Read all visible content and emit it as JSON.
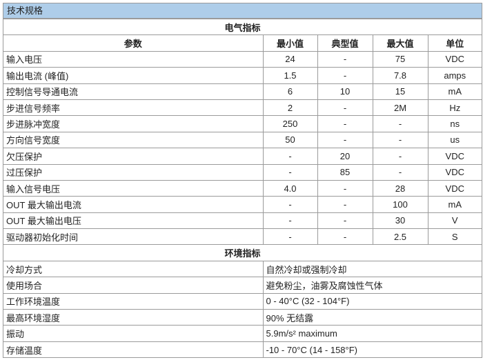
{
  "title": "技术规格",
  "electrical": {
    "section": "电气指标",
    "headers": [
      "参数",
      "最小值",
      "典型值",
      "最大值",
      "单位"
    ],
    "rows": [
      [
        "输入电压",
        "24",
        "-",
        "75",
        "VDC"
      ],
      [
        "输出电流 (峰值)",
        "1.5",
        "-",
        "7.8",
        "amps"
      ],
      [
        "控制信号导通电流",
        "6",
        "10",
        "15",
        "mA"
      ],
      [
        "步进信号频率",
        "2",
        "-",
        "2M",
        "Hz"
      ],
      [
        "步进脉冲宽度",
        "250",
        "-",
        "-",
        "ns"
      ],
      [
        "方向信号宽度",
        "50",
        "-",
        "-",
        "us"
      ],
      [
        "欠压保护",
        "-",
        "20",
        "-",
        "VDC"
      ],
      [
        "过压保护",
        "-",
        "85",
        "-",
        "VDC"
      ],
      [
        "输入信号电压",
        "4.0",
        "-",
        "28",
        "VDC"
      ],
      [
        "OUT 最大输出电流",
        "-",
        "-",
        "100",
        "mA"
      ],
      [
        "OUT 最大输出电压",
        "-",
        "-",
        "30",
        "V"
      ],
      [
        "驱动器初始化时间",
        "-",
        "-",
        "2.5",
        "S"
      ]
    ]
  },
  "environment": {
    "section": "环境指标",
    "rows": [
      [
        "冷却方式",
        "自然冷却或强制冷却"
      ],
      [
        "使用场合",
        "避免粉尘，油雾及腐蚀性气体"
      ],
      [
        "工作环境温度",
        "0 - 40°C (32 - 104°F)"
      ],
      [
        "最高环境湿度",
        "90% 无结露"
      ],
      [
        "振动",
        "5.9m/s² maximum"
      ],
      [
        "存储温度",
        "-10 - 70°C (14 - 158°F)"
      ]
    ]
  }
}
